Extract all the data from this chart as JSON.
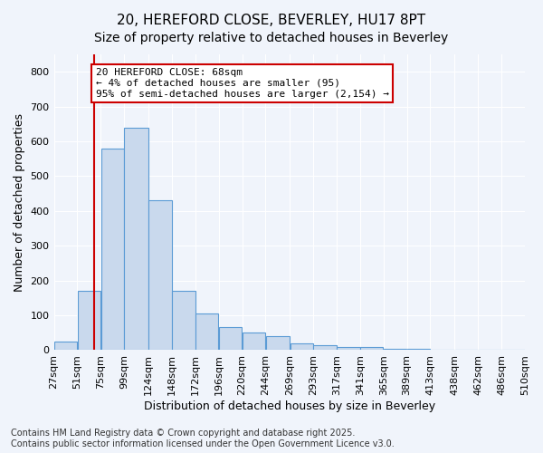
{
  "title_line1": "20, HEREFORD CLOSE, BEVERLEY, HU17 8PT",
  "title_line2": "Size of property relative to detached houses in Beverley",
  "xlabel": "Distribution of detached houses by size in Beverley",
  "ylabel": "Number of detached properties",
  "bar_color": "#c9d9ed",
  "bar_edge_color": "#5b9bd5",
  "marker_line_color": "#cc0000",
  "marker_value": 68,
  "categories": [
    "27sqm",
    "51sqm",
    "75sqm",
    "99sqm",
    "124sqm",
    "148sqm",
    "172sqm",
    "196sqm",
    "220sqm",
    "244sqm",
    "269sqm",
    "293sqm",
    "317sqm",
    "341sqm",
    "365sqm",
    "389sqm",
    "413sqm",
    "438sqm",
    "462sqm",
    "486sqm",
    "510sqm"
  ],
  "bar_centers": [
    39,
    63,
    87,
    111.5,
    136,
    160,
    184,
    208,
    232,
    256.5,
    281,
    305,
    329,
    353,
    377,
    401,
    425.5,
    450,
    474,
    498
  ],
  "bar_widths": [
    24,
    24,
    24,
    25,
    24,
    24,
    24,
    24,
    24,
    25,
    24,
    24,
    24,
    24,
    24,
    24,
    25,
    24,
    24,
    24
  ],
  "values": [
    25,
    170,
    580,
    640,
    430,
    170,
    105,
    65,
    50,
    40,
    20,
    15,
    10,
    10,
    5,
    3,
    2,
    1,
    1,
    0
  ],
  "tick_positions": [
    27,
    51,
    75,
    99,
    124,
    148,
    172,
    196,
    220,
    244,
    269,
    293,
    317,
    341,
    365,
    389,
    413,
    438,
    462,
    486,
    510
  ],
  "xlim": [
    27,
    510
  ],
  "ylim": [
    0,
    850
  ],
  "yticks": [
    0,
    100,
    200,
    300,
    400,
    500,
    600,
    700,
    800
  ],
  "annotation_text": "20 HEREFORD CLOSE: 68sqm\n← 4% of detached houses are smaller (95)\n95% of semi-detached houses are larger (2,154) →",
  "annotation_box_color": "#ffffff",
  "annotation_box_edge": "#cc0000",
  "footer_line1": "Contains HM Land Registry data © Crown copyright and database right 2025.",
  "footer_line2": "Contains public sector information licensed under the Open Government Licence v3.0.",
  "background_color": "#f0f4fb",
  "grid_color": "#ffffff",
  "title_fontsize": 11,
  "subtitle_fontsize": 10,
  "axis_label_fontsize": 9,
  "tick_fontsize": 8,
  "annotation_fontsize": 8,
  "footer_fontsize": 7
}
